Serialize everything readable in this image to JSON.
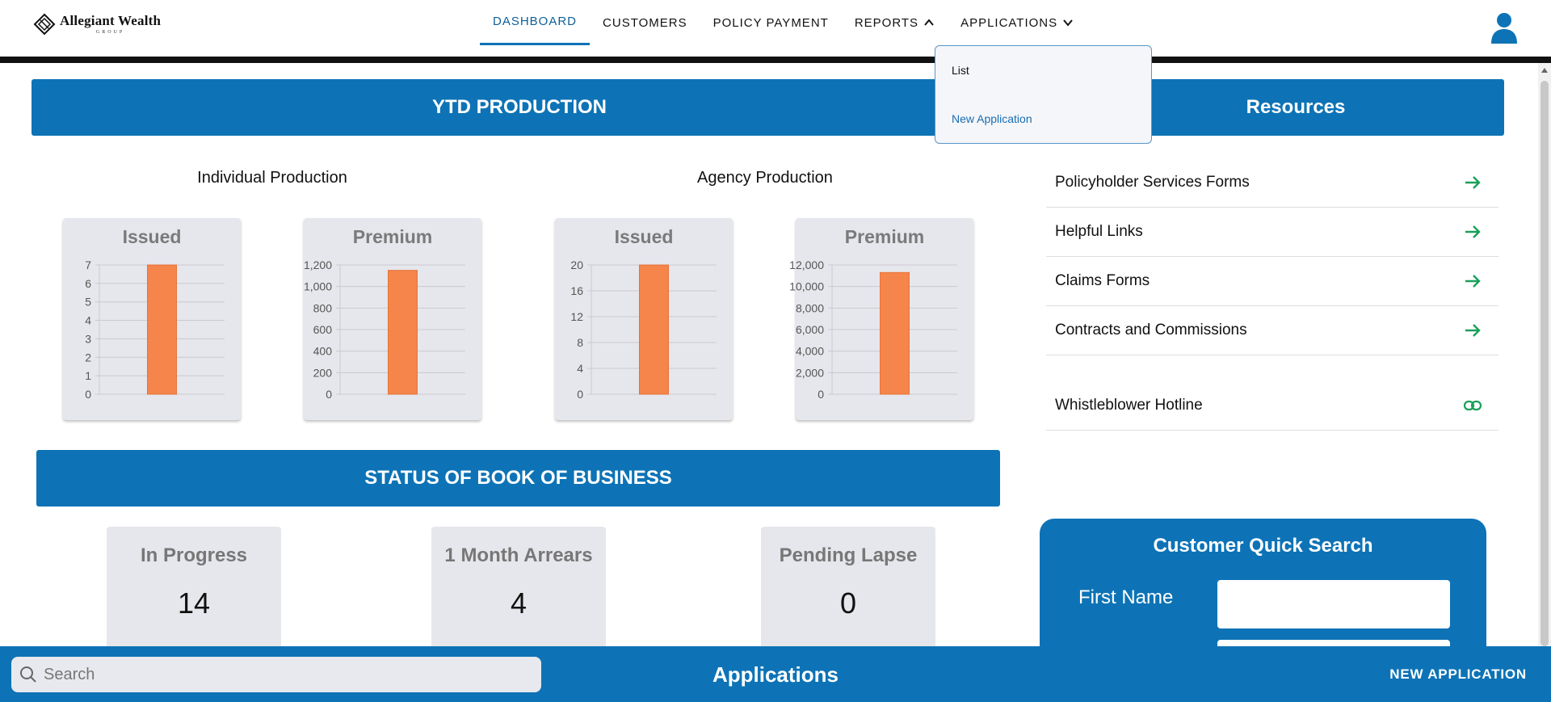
{
  "brand": {
    "name": "Allegiant Wealth",
    "sub": "GROUP"
  },
  "nav": {
    "items": [
      {
        "label": "DASHBOARD"
      },
      {
        "label": "CUSTOMERS"
      },
      {
        "label": "POLICY PAYMENT"
      },
      {
        "label": "REPORTS"
      },
      {
        "label": "APPLICATIONS"
      }
    ]
  },
  "dropdown": {
    "items": [
      {
        "label": "List"
      },
      {
        "label": "New Application"
      }
    ]
  },
  "ytd": {
    "title": "YTD PRODUCTION",
    "individual_title": "Individual Production",
    "agency_title": "Agency Production"
  },
  "resources": {
    "title": "Resources",
    "items": [
      {
        "label": "Policyholder Services Forms",
        "icon": "arrow-right-icon"
      },
      {
        "label": "Helpful Links",
        "icon": "arrow-right-icon"
      },
      {
        "label": "Claims Forms",
        "icon": "arrow-right-icon"
      },
      {
        "label": "Contracts and Commissions",
        "icon": "arrow-right-icon"
      },
      {
        "label": "Whistleblower Hotline",
        "icon": "link-icon"
      }
    ]
  },
  "status": {
    "title": "STATUS OF BOOK OF BUSINESS",
    "cards": [
      {
        "label": "In Progress",
        "value": "14"
      },
      {
        "label": "1 Month Arrears",
        "value": "4"
      },
      {
        "label": "Pending Lapse",
        "value": "0"
      }
    ]
  },
  "quick_search": {
    "title": "Customer Quick Search",
    "first_name_label": "First Name"
  },
  "bottom": {
    "search_placeholder": "Search",
    "title": "Applications",
    "new_label": "NEW APPLICATION"
  },
  "colors": {
    "primary": "#0d73b6",
    "bar": "#f5854a",
    "resource_icon": "#1aa05a"
  },
  "chart_data": [
    {
      "type": "bar",
      "title": "Issued",
      "group": "Individual Production",
      "categories": [
        ""
      ],
      "values": [
        7
      ],
      "ylim": [
        0,
        7
      ],
      "ticks": [
        0,
        1,
        2,
        3,
        4,
        5,
        6,
        7
      ],
      "tick_labels": [
        "0",
        "1",
        "2",
        "3",
        "4",
        "5",
        "6",
        "7"
      ]
    },
    {
      "type": "bar",
      "title": "Premium",
      "group": "Individual Production",
      "categories": [
        ""
      ],
      "values": [
        1150
      ],
      "ylim": [
        0,
        1200
      ],
      "ticks": [
        0,
        200,
        400,
        600,
        800,
        1000,
        1200
      ],
      "tick_labels": [
        "0",
        "200",
        "400",
        "600",
        "800",
        "1,000",
        "1,200"
      ]
    },
    {
      "type": "bar",
      "title": "Issued",
      "group": "Agency Production",
      "categories": [
        ""
      ],
      "values": [
        20
      ],
      "ylim": [
        0,
        20
      ],
      "ticks": [
        0,
        4,
        8,
        12,
        16,
        20
      ],
      "tick_labels": [
        "0",
        "4",
        "8",
        "12",
        "16",
        "20"
      ]
    },
    {
      "type": "bar",
      "title": "Premium",
      "group": "Agency Production",
      "categories": [
        ""
      ],
      "values": [
        11300
      ],
      "ylim": [
        0,
        12000
      ],
      "ticks": [
        0,
        2000,
        4000,
        6000,
        8000,
        10000,
        12000
      ],
      "tick_labels": [
        "0",
        "2,000",
        "4,000",
        "6,000",
        "8,000",
        "10,000",
        "12,000"
      ]
    }
  ]
}
